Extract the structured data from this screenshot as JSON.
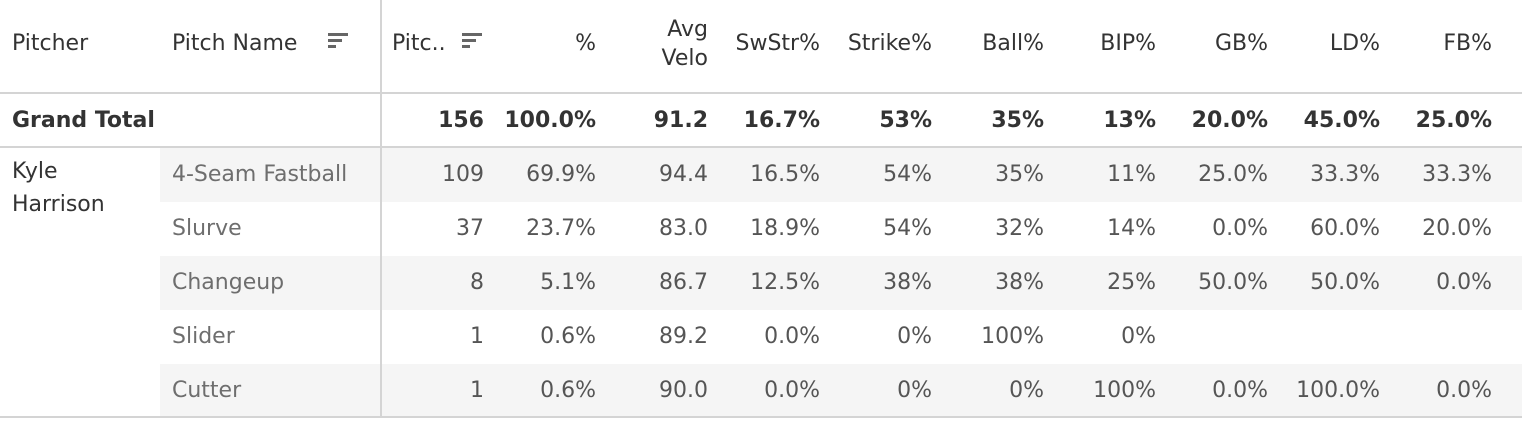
{
  "columns": {
    "pitcher": "Pitcher",
    "pitch_name": "Pitch Name",
    "pitches": "Pitc..",
    "percent": "%",
    "avg_velo_line1": "Avg",
    "avg_velo_line2": "Velo",
    "swstr": "SwStr%",
    "strike": "Strike%",
    "ball": "Ball%",
    "bip": "BIP%",
    "gb": "GB%",
    "ld": "LD%",
    "fb": "FB%"
  },
  "icons": {
    "pitch_name_sort": "sort-descending-icon",
    "pitches_sort": "sort-descending-icon"
  },
  "grand_total": {
    "label": "Grand Total",
    "pitches": "156",
    "percent": "100.0%",
    "avg_velo": "91.2",
    "swstr": "16.7%",
    "strike": "53%",
    "ball": "35%",
    "bip": "13%",
    "gb": "20.0%",
    "ld": "45.0%",
    "fb": "25.0%"
  },
  "pitcher": {
    "name_line1": "Kyle",
    "name_line2": "Harrison"
  },
  "rows": [
    {
      "pitch_name": "4-Seam Fastball",
      "pitches": "109",
      "percent": "69.9%",
      "avg_velo": "94.4",
      "swstr": "16.5%",
      "strike": "54%",
      "ball": "35%",
      "bip": "11%",
      "gb": "25.0%",
      "ld": "33.3%",
      "fb": "33.3%"
    },
    {
      "pitch_name": "Slurve",
      "pitches": "37",
      "percent": "23.7%",
      "avg_velo": "83.0",
      "swstr": "18.9%",
      "strike": "54%",
      "ball": "32%",
      "bip": "14%",
      "gb": "0.0%",
      "ld": "60.0%",
      "fb": "20.0%"
    },
    {
      "pitch_name": "Changeup",
      "pitches": "8",
      "percent": "5.1%",
      "avg_velo": "86.7",
      "swstr": "12.5%",
      "strike": "38%",
      "ball": "38%",
      "bip": "25%",
      "gb": "50.0%",
      "ld": "50.0%",
      "fb": "0.0%"
    },
    {
      "pitch_name": "Slider",
      "pitches": "1",
      "percent": "0.6%",
      "avg_velo": "89.2",
      "swstr": "0.0%",
      "strike": "0%",
      "ball": "100%",
      "bip": "0%",
      "gb": "",
      "ld": "",
      "fb": ""
    },
    {
      "pitch_name": "Cutter",
      "pitches": "1",
      "percent": "0.6%",
      "avg_velo": "90.0",
      "swstr": "0.0%",
      "strike": "0%",
      "ball": "0%",
      "bip": "100%",
      "gb": "0.0%",
      "ld": "100.0%",
      "fb": "0.0%"
    }
  ],
  "colors": {
    "row_band": "#f5f5f5",
    "grid_line": "#d4d4d4",
    "text": "#333333"
  }
}
